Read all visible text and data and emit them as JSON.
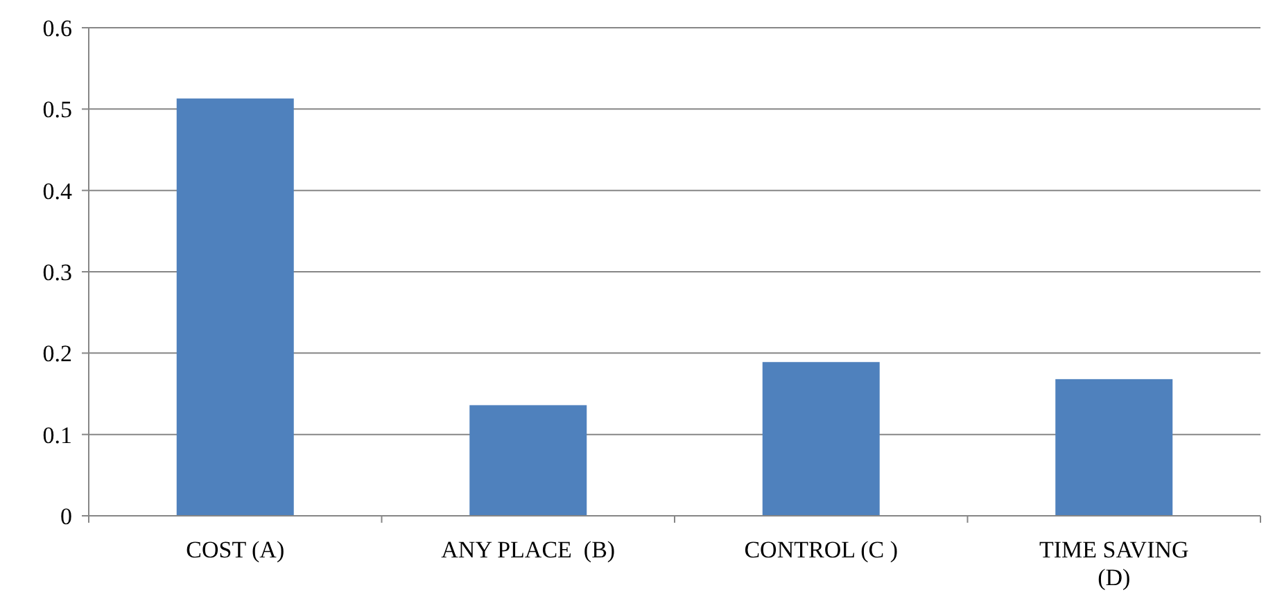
{
  "chart_data": {
    "type": "bar",
    "categories": [
      "COST (A)",
      "ANY PLACE  (B)",
      "CONTROL (C )",
      "TIME SAVING (D)"
    ],
    "values": [
      0.513,
      0.136,
      0.189,
      0.168
    ],
    "color": "#4f81bd",
    "ylim": [
      0,
      0.6
    ],
    "yticks": [
      0,
      0.1,
      0.2,
      0.3,
      0.4,
      0.5,
      0.6
    ],
    "grid": "y"
  }
}
